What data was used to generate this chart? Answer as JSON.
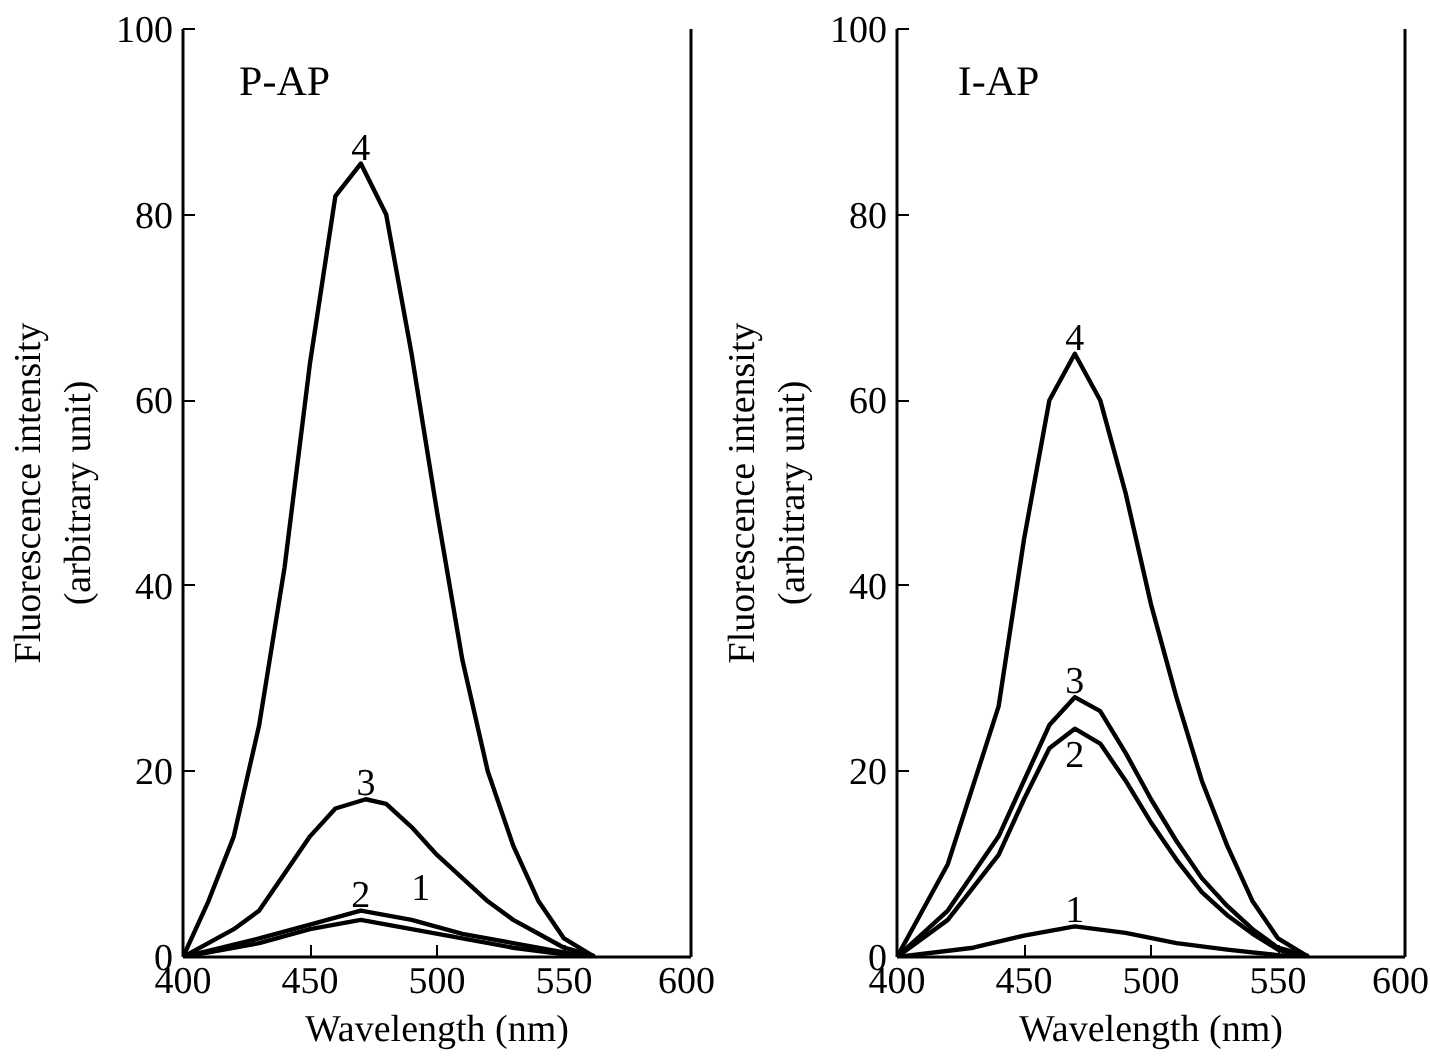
{
  "chart_data": [
    {
      "type": "line",
      "title": "P-AP",
      "xlabel": "Wavelength (nm)",
      "ylabel": "Fluorescence intensity\n(arbitrary unit)",
      "xlim": [
        400,
        600
      ],
      "ylim": [
        0,
        100
      ],
      "xticks": [
        400,
        450,
        500,
        550,
        600
      ],
      "yticks": [
        0,
        20,
        40,
        60,
        80,
        100
      ],
      "grid": false,
      "legend": false,
      "series": [
        {
          "name": "1",
          "color": "#000000",
          "x": [
            400,
            430,
            450,
            470,
            490,
            510,
            530,
            550,
            557
          ],
          "values": [
            0,
            1.5,
            3,
            4,
            3,
            2,
            1,
            0.3,
            0.1
          ]
        },
        {
          "name": "2",
          "color": "#000000",
          "x": [
            400,
            430,
            450,
            470,
            490,
            510,
            530,
            550,
            560
          ],
          "values": [
            0,
            2,
            3.5,
            5,
            4,
            2.5,
            1.5,
            0.5,
            0
          ]
        },
        {
          "name": "3",
          "color": "#000000",
          "x": [
            400,
            420,
            430,
            440,
            450,
            460,
            472,
            480,
            490,
            500,
            510,
            520,
            530,
            540,
            550,
            562
          ],
          "values": [
            0,
            3,
            5,
            9,
            13,
            16,
            17,
            16.5,
            14,
            11,
            8.5,
            6,
            4,
            2.5,
            1,
            0.1
          ]
        },
        {
          "name": "4",
          "color": "#000000",
          "x": [
            400,
            410,
            420,
            430,
            440,
            450,
            460,
            470,
            480,
            490,
            500,
            510,
            520,
            530,
            540,
            550,
            562
          ],
          "values": [
            0,
            6,
            13,
            25,
            42,
            64,
            82,
            85.5,
            80,
            65,
            48,
            32,
            20,
            12,
            6,
            2,
            0
          ]
        }
      ]
    },
    {
      "type": "line",
      "title": "I-AP",
      "xlabel": "Wavelength (nm)",
      "ylabel": "Fluorescence intensity\n(arbitrary unit)",
      "xlim": [
        400,
        600
      ],
      "ylim": [
        0,
        100
      ],
      "xticks": [
        400,
        450,
        500,
        550,
        600
      ],
      "yticks": [
        0,
        20,
        40,
        60,
        80,
        100
      ],
      "grid": false,
      "legend": false,
      "series": [
        {
          "name": "1",
          "color": "#000000",
          "x": [
            400,
            430,
            450,
            470,
            490,
            510,
            530,
            550,
            556
          ],
          "values": [
            0,
            1,
            2.3,
            3.3,
            2.6,
            1.5,
            0.8,
            0.2,
            0.1
          ]
        },
        {
          "name": "2",
          "color": "#000000",
          "x": [
            400,
            420,
            440,
            450,
            460,
            470,
            480,
            490,
            500,
            510,
            520,
            530,
            540,
            550,
            559
          ],
          "values": [
            0,
            4,
            11,
            17,
            22.5,
            24.6,
            23,
            19,
            14.5,
            10.5,
            7,
            4.5,
            2.5,
            0.8,
            0.1
          ]
        },
        {
          "name": "3",
          "color": "#000000",
          "x": [
            400,
            420,
            440,
            450,
            460,
            470,
            480,
            490,
            500,
            510,
            520,
            530,
            540,
            550,
            562
          ],
          "values": [
            0,
            5,
            13,
            19,
            25,
            28,
            26.5,
            22,
            17,
            12.5,
            8.5,
            5.5,
            3,
            1,
            0.1
          ]
        },
        {
          "name": "4",
          "color": "#000000",
          "x": [
            400,
            420,
            440,
            450,
            460,
            470,
            480,
            490,
            500,
            510,
            520,
            530,
            540,
            550,
            562
          ],
          "values": [
            0,
            10,
            27,
            45,
            60,
            65,
            60,
            50,
            38,
            28,
            19,
            12,
            6,
            2,
            0
          ]
        }
      ]
    }
  ]
}
